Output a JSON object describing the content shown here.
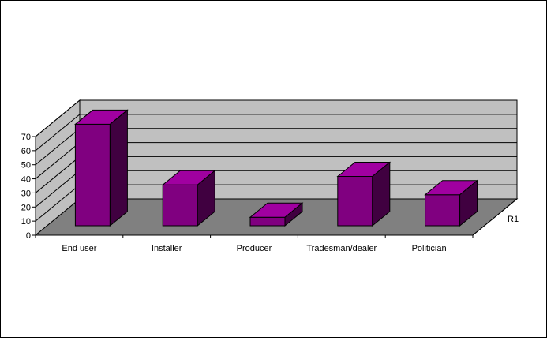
{
  "chart_data": {
    "type": "bar",
    "subtype": "3d-column",
    "categories": [
      "End user",
      "Installer",
      "Producer",
      "Tradesman/dealer",
      "Politician"
    ],
    "series": [
      {
        "name": "R1",
        "values": [
          72,
          29,
          6,
          35,
          22
        ]
      }
    ],
    "y_ticks": [
      "0",
      "10",
      "20",
      "30",
      "40",
      "50",
      "60",
      "70"
    ],
    "ylim": [
      0,
      70
    ],
    "depth_label": "R1",
    "grid": true,
    "colors": {
      "bar_front": "#800080",
      "bar_top": "#a000a0",
      "bar_side": "#400040",
      "back_wall": "#c0c0c0",
      "side_wall": "#c0c0c0",
      "floor": "#808080",
      "gridline": "#000000"
    }
  }
}
